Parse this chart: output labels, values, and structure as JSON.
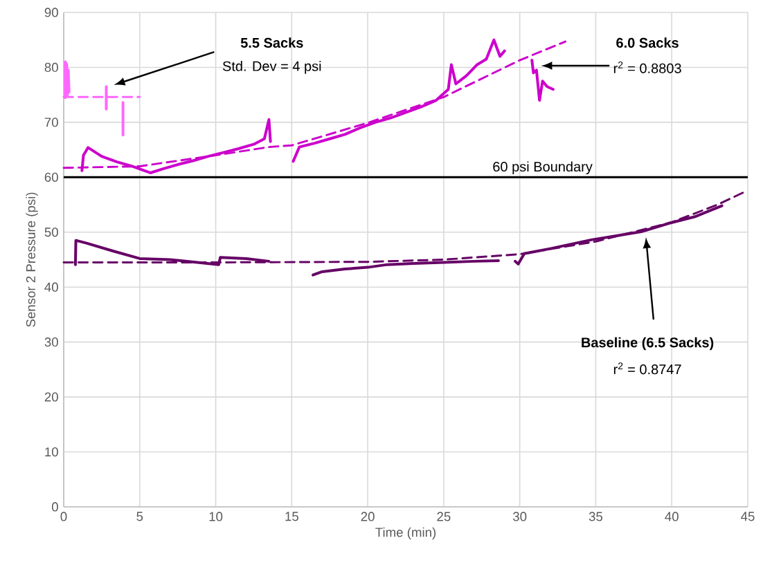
{
  "chart_data": {
    "type": "line",
    "xlabel": "Time (min)",
    "ylabel": "Sensor 2 Pressure (psi)",
    "xlim": [
      0,
      45
    ],
    "ylim": [
      0,
      90
    ],
    "xticks": [
      0,
      5,
      10,
      15,
      20,
      25,
      30,
      35,
      40,
      45
    ],
    "yticks": [
      0,
      10,
      20,
      30,
      40,
      50,
      60,
      70,
      80,
      90
    ],
    "grid": true,
    "series": [
      {
        "color": "#ff66ff",
        "line_style": "solid",
        "x": [
          0.1,
          0.1,
          0.2,
          0.25,
          0.3,
          0.35,
          1.5,
          2.8,
          2.8,
          3.3,
          3.9,
          3.9
        ],
        "values": [
          74.5,
          81,
          80.5,
          75,
          79.5,
          75.5,
          null,
          76.5,
          72.4,
          null,
          73.6,
          67.7
        ]
      },
      {
        "color": "#ff66ff",
        "line_style": "dashed",
        "x": [
          0,
          5
        ],
        "values": [
          74.6,
          74.6
        ]
      },
      {
        "color": "#cc00cc",
        "line_style": "solid",
        "x": [
          1.2,
          1.3,
          1.6,
          2.5,
          3.5,
          4.5,
          5.7,
          6.5,
          7.5,
          8.5,
          9.5,
          10.5,
          11.5,
          12.5,
          13.2,
          13.5,
          13.6,
          14.2,
          15.1,
          15.5,
          16.5,
          17.5,
          18.5,
          19.5,
          20.5,
          21.5,
          22.5,
          23.5,
          24.5,
          25.3,
          25.5,
          25.8,
          26.5,
          27.2,
          27.8,
          28.3,
          28.7,
          29.0,
          30.0,
          30.8,
          30.9,
          31.1,
          31.3,
          31.5,
          31.8,
          32.2
        ],
        "values": [
          61.2,
          64,
          65.4,
          63.8,
          62.8,
          62,
          60.8,
          61.5,
          62.3,
          63,
          63.8,
          64.5,
          65.2,
          66,
          67,
          70.5,
          66.5,
          null,
          62.9,
          65.5,
          66.2,
          67,
          67.8,
          69,
          70,
          70.8,
          71.8,
          72.8,
          74,
          76,
          80.5,
          77,
          78.5,
          80.5,
          81.5,
          85,
          82,
          83,
          null,
          81.3,
          79,
          79.5,
          74,
          77.5,
          76.5,
          76
        ]
      },
      {
        "color": "#cc00cc",
        "line_style": "dashed",
        "x": [
          0,
          5,
          10,
          13.5,
          15,
          20,
          25,
          30,
          33
        ],
        "values": [
          61.7,
          62,
          64,
          65.5,
          65.8,
          69.9,
          74.6,
          81.3,
          84.7
        ]
      },
      {
        "color": "#660066",
        "line_style": "solid",
        "x": [
          0.77,
          0.8,
          1.5,
          3.2,
          5,
          7,
          10.2,
          10.3,
          12,
          13.5,
          15,
          16.4,
          17,
          18.5,
          20,
          21.3,
          23,
          25,
          27,
          28.6,
          29.2,
          29.7,
          29.9,
          30.3,
          32,
          34.7,
          36.5,
          38,
          39.8,
          41.5,
          43.3
        ],
        "values": [
          44.1,
          48.5,
          48,
          46.6,
          45.2,
          45,
          44.1,
          45.4,
          45.2,
          44.7,
          null,
          42.2,
          42.8,
          43.3,
          43.6,
          44.1,
          44.3,
          44.5,
          44.7,
          44.8,
          null,
          44.7,
          44.2,
          46.1,
          47,
          48.6,
          49.4,
          50.1,
          51.6,
          52.8,
          54.8
        ]
      },
      {
        "color": "#660066",
        "line_style": "dashed",
        "x": [
          0,
          10,
          20,
          25,
          30,
          35,
          40,
          43,
          45
        ],
        "values": [
          44.5,
          44.5,
          44.6,
          45.0,
          46,
          48.3,
          51.8,
          55,
          57.6
        ]
      }
    ],
    "ref_lines": [
      {
        "axis": "y",
        "value": 60,
        "label": "60 psi Boundary",
        "color": "#000000",
        "line_style": "solid"
      }
    ],
    "annotations": [
      "**5.5 Sacks**",
      "Std. Dev = 4 psi",
      "**6.0 Sacks**",
      "r$^{2}$ = 0.8803",
      "**Baseline (6.5 Sacks)**",
      "r$^{2}$ = 0.8747"
    ]
  }
}
